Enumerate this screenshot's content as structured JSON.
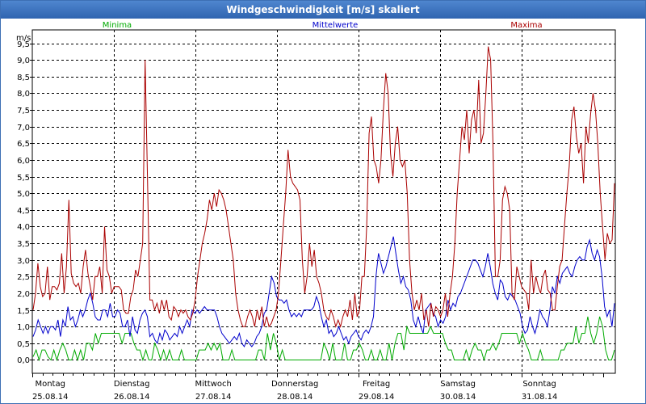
{
  "window": {
    "title": "Windgeschwindigkeit [m/s] skaliert"
  },
  "chart_data": {
    "type": "line",
    "title": "Windgeschwindigkeit [m/s] skaliert",
    "ylabel": "m/s",
    "xlabel": "",
    "ylim": [
      -0.4,
      9.9
    ],
    "yticks": [
      "0,0",
      "0,5",
      "1,0",
      "1,5",
      "2,0",
      "2,5",
      "3,0",
      "3,5",
      "4,0",
      "4,5",
      "5,0",
      "5,5",
      "6,0",
      "6,5",
      "7,0",
      "7,5",
      "8,0",
      "8,5",
      "9,0",
      "9,5"
    ],
    "xlim": [
      0,
      7.15
    ],
    "grid": true,
    "days": [
      {
        "name": "Montag",
        "date": "25.08.14"
      },
      {
        "name": "Dienstag",
        "date": "26.08.14"
      },
      {
        "name": "Mittwoch",
        "date": "27.08.14"
      },
      {
        "name": "Donnerstag",
        "date": "28.08.14"
      },
      {
        "name": "Freitag",
        "date": "29.08.14"
      },
      {
        "name": "Samstag",
        "date": "30.08.14"
      },
      {
        "name": "Sonntag",
        "date": "31.08.14"
      }
    ],
    "legend": [
      "Minima",
      "Mittelwerte",
      "Maxima"
    ],
    "series": [
      {
        "name": "Minima",
        "color": "#00aa00",
        "values": [
          0.1,
          0.3,
          0.0,
          0.3,
          0.3,
          0.1,
          0.0,
          0.3,
          0.0,
          0.3,
          0.5,
          0.3,
          0.0,
          0.0,
          0.3,
          0.0,
          0.3,
          0.0,
          0.5,
          0.5,
          0.3,
          0.8,
          0.5,
          0.8,
          0.8,
          0.8,
          0.8,
          0.8,
          0.8,
          0.8,
          0.5,
          0.8,
          0.8,
          0.8,
          0.5,
          0.3,
          0.3,
          0.0,
          0.3,
          0.0,
          0.0,
          0.5,
          0.3,
          0.0,
          0.3,
          0.0,
          0.3,
          0.0,
          0.0,
          0.0,
          0.3,
          0.0,
          0.0,
          0.0,
          0.0,
          0.0,
          0.3,
          0.3,
          0.3,
          0.5,
          0.3,
          0.5,
          0.3,
          0.5,
          0.0,
          0.0,
          0.0,
          0.3,
          0.0,
          0.0,
          0.0,
          0.0,
          0.0,
          0.0,
          0.0,
          0.0,
          0.3,
          0.3,
          0.0,
          0.8,
          0.3,
          0.8,
          0.5,
          0.0,
          0.3,
          0.0,
          0.0,
          0.0,
          0.0,
          0.0,
          0.0,
          0.0,
          0.0,
          0.0,
          0.0,
          0.0,
          0.0,
          0.0,
          0.5,
          0.3,
          0.0,
          0.5,
          0.0,
          0.0,
          0.0,
          0.5,
          0.0,
          0.0,
          0.3,
          0.3,
          0.5,
          0.3,
          0.0,
          0.0,
          0.3,
          0.0,
          0.0,
          0.3,
          0.0,
          0.0,
          0.5,
          0.0,
          0.5,
          0.8,
          0.8,
          0.3,
          1.0,
          0.8,
          0.8,
          0.8,
          0.8,
          0.8,
          0.8,
          0.8,
          1.0,
          0.8,
          0.8,
          0.8,
          0.8,
          0.5,
          0.3,
          0.3,
          0.0,
          0.0,
          0.0,
          0.0,
          0.3,
          0.0,
          0.3,
          0.5,
          0.3,
          0.3,
          0.0,
          0.3,
          0.3,
          0.5,
          0.3,
          0.5,
          0.8,
          0.8,
          0.8,
          0.8,
          0.8,
          0.8,
          0.5,
          0.8,
          0.5,
          0.3,
          0.0,
          0.0,
          0.0,
          0.3,
          0.0,
          0.0,
          0.0,
          0.0,
          0.0,
          0.0,
          0.3,
          0.3,
          0.5,
          0.5,
          0.5,
          1.0,
          0.5,
          0.8,
          0.8,
          1.3,
          0.8,
          0.5,
          0.8,
          1.3,
          1.0,
          0.3,
          0.0,
          0.0,
          0.3
        ]
      },
      {
        "name": "Mittelwerte",
        "color": "#0000cc",
        "values": [
          0.7,
          0.9,
          1.2,
          1.0,
          0.8,
          1.0,
          0.8,
          1.0,
          1.0,
          0.9,
          1.2,
          0.7,
          1.2,
          1.0,
          1.6,
          1.2,
          1.3,
          1.0,
          1.2,
          1.5,
          1.3,
          1.5,
          1.8,
          2.0,
          1.7,
          1.3,
          1.2,
          1.2,
          1.5,
          1.5,
          1.3,
          1.7,
          1.3,
          1.3,
          1.5,
          1.4,
          1.0,
          1.0,
          1.2,
          0.7,
          1.3,
          0.9,
          0.8,
          1.2,
          1.4,
          1.5,
          1.3,
          0.7,
          0.8,
          0.6,
          0.5,
          0.8,
          0.6,
          0.9,
          0.8,
          0.6,
          0.7,
          0.8,
          0.7,
          1.0,
          0.8,
          1.0,
          1.2,
          1.0,
          1.5,
          1.4,
          1.5,
          1.4,
          1.5,
          1.6,
          1.5,
          1.5,
          1.5,
          1.5,
          1.3,
          1.0,
          0.8,
          0.7,
          0.6,
          0.5,
          0.6,
          0.7,
          0.6,
          0.8,
          0.5,
          0.4,
          0.6,
          0.5,
          0.4,
          0.5,
          0.7,
          0.8,
          1.0,
          1.4,
          1.5,
          2.0,
          2.5,
          2.3,
          1.9,
          1.8,
          1.8,
          1.7,
          1.8,
          1.5,
          1.3,
          1.4,
          1.3,
          1.4,
          1.3,
          1.5,
          1.5,
          1.5,
          1.5,
          1.6,
          1.9,
          1.7,
          1.3,
          1.0,
          1.2,
          0.8,
          0.9,
          0.7,
          0.8,
          1.0,
          0.8,
          0.6,
          0.7,
          0.5,
          0.7,
          0.8,
          0.9,
          0.7,
          0.6,
          0.8,
          0.9,
          0.8,
          1.0,
          1.3,
          2.5,
          3.2,
          2.9,
          2.6,
          2.8,
          3.1,
          3.4,
          3.7,
          3.2,
          2.7,
          2.3,
          2.5,
          2.2,
          2.1,
          1.8,
          1.2,
          1.0,
          1.3,
          1.0,
          0.8,
          1.5,
          1.6,
          1.7,
          1.4,
          1.3,
          1.0,
          1.2,
          1.1,
          1.3,
          1.8,
          1.5,
          1.7,
          1.6,
          1.9,
          2.0,
          2.2,
          2.4,
          2.6,
          2.8,
          3.0,
          3.0,
          2.9,
          2.7,
          2.5,
          2.8,
          3.2,
          2.8,
          2.3,
          2.0,
          1.8,
          2.4,
          2.3,
          1.9,
          1.8,
          2.0,
          1.9,
          1.8,
          1.6,
          1.4,
          1.0,
          0.8,
          0.9,
          1.3,
          1.0,
          0.8,
          1.1,
          1.5,
          1.3,
          1.2,
          1.0,
          1.5,
          2.2,
          2.0,
          2.5,
          2.3,
          2.6,
          2.7,
          2.8,
          2.6,
          2.5,
          2.8,
          3.0,
          3.1,
          3.0,
          3.0,
          3.4,
          3.6,
          3.2,
          3.0,
          3.3,
          3.1,
          2.5,
          1.6,
          1.3,
          1.5,
          1.0,
          1.7
        ]
      },
      {
        "name": "Maxima",
        "color": "#aa0000",
        "values": [
          1.5,
          2.0,
          2.9,
          2.2,
          1.9,
          2.0,
          2.8,
          1.8,
          2.2,
          2.2,
          2.1,
          2.3,
          3.2,
          2.0,
          2.8,
          4.8,
          2.6,
          2.3,
          2.2,
          2.3,
          2.0,
          2.8,
          3.3,
          2.6,
          2.2,
          1.8,
          2.5,
          2.5,
          2.8,
          2.0,
          4.0,
          2.7,
          2.5,
          2.0,
          2.2,
          2.2,
          2.2,
          2.1,
          1.5,
          1.4,
          1.4,
          1.9,
          2.1,
          2.7,
          2.5,
          3.0,
          3.5,
          9.0,
          5.5,
          1.8,
          1.8,
          1.5,
          1.7,
          1.4,
          1.8,
          1.5,
          1.8,
          1.3,
          1.2,
          1.6,
          1.5,
          1.3,
          1.5,
          1.4,
          1.5,
          1.3,
          1.2,
          1.4,
          1.8,
          2.5,
          3.0,
          3.5,
          3.8,
          4.2,
          4.8,
          4.5,
          5.0,
          4.6,
          5.1,
          5.0,
          4.8,
          4.5,
          4.0,
          3.5,
          3.0,
          2.0,
          1.5,
          1.2,
          1.0,
          1.0,
          1.3,
          1.5,
          1.3,
          1.0,
          1.5,
          1.2,
          1.6,
          1.0,
          1.3,
          1.0,
          1.1,
          1.3,
          1.5,
          2.0,
          3.0,
          4.0,
          5.0,
          6.3,
          5.5,
          5.3,
          5.2,
          5.1,
          4.8,
          3.0,
          2.0,
          2.5,
          3.5,
          2.8,
          3.3,
          2.5,
          2.3,
          2.0,
          1.5,
          1.3,
          1.2,
          1.5,
          1.3,
          1.0,
          1.2,
          1.0,
          1.3,
          1.5,
          1.3,
          1.8,
          1.2,
          2.0,
          1.3,
          1.5,
          2.5,
          2.5,
          4.0,
          6.8,
          7.3,
          6.0,
          5.8,
          5.3,
          6.0,
          7.5,
          8.6,
          8.0,
          6.2,
          5.5,
          6.5,
          7.0,
          6.0,
          5.8,
          6.0,
          5.0,
          3.0,
          2.0,
          1.5,
          1.8,
          1.5,
          2.0,
          1.2,
          1.5,
          1.0,
          1.7,
          1.3,
          1.6,
          1.5,
          1.3,
          1.5,
          2.0,
          1.3,
          2.0,
          2.5,
          3.5,
          5.0,
          6.0,
          7.0,
          6.6,
          7.5,
          6.2,
          7.2,
          7.5,
          6.8,
          8.4,
          6.5,
          6.8,
          8.0,
          9.4,
          9.0,
          6.5,
          2.5,
          2.5,
          3.0,
          4.8,
          5.2,
          5.0,
          4.5,
          2.0,
          1.8,
          2.8,
          2.5,
          2.2,
          2.1,
          2.0,
          1.5,
          3.0,
          2.0,
          2.5,
          2.2,
          2.0,
          2.5,
          2.7,
          2.1,
          2.0,
          1.5,
          1.5,
          2.2,
          2.8,
          3.0,
          4.0,
          5.0,
          5.8,
          7.2,
          7.6,
          6.7,
          6.2,
          6.5,
          5.3,
          7.0,
          6.5,
          7.4,
          8.0,
          7.5,
          6.5,
          5.0,
          4.0,
          3.0,
          3.8,
          3.5,
          3.6,
          5.3
        ]
      }
    ]
  }
}
